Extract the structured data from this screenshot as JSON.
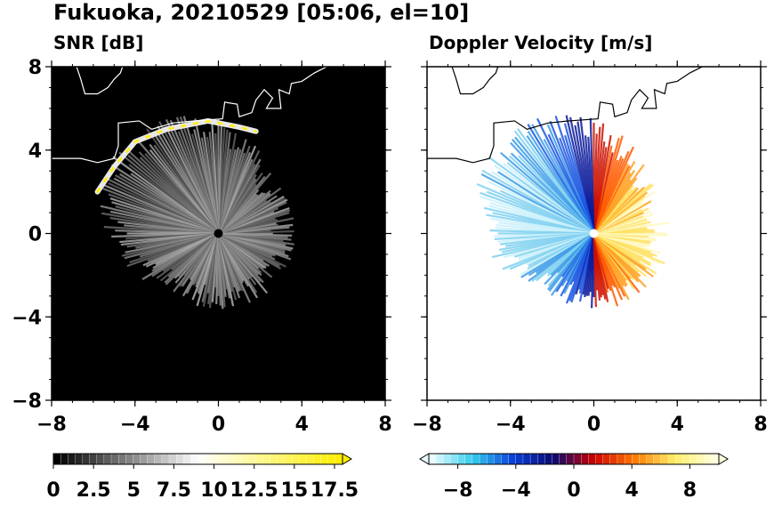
{
  "figure": {
    "title": "Fukuoka, 20210529 [05:06, el=10]"
  },
  "chart_data": [
    {
      "type": "heatmap",
      "title": "SNR [dB]",
      "xlim": [
        -8,
        8
      ],
      "ylim": [
        -8,
        8
      ],
      "xticks": [
        "−8",
        "−4",
        "0",
        "4",
        "8"
      ],
      "yticks": [
        "8",
        "4",
        "0",
        "−4",
        "−8"
      ],
      "background": "#000000",
      "colorbar": {
        "range": [
          0,
          18
        ],
        "tick_labels": [
          "0",
          "2.5",
          "5",
          "7.5",
          "10",
          "12.5",
          "15",
          "17.5"
        ],
        "colors": [
          "#000000",
          "#ffffff",
          "#ffee00"
        ],
        "extend": "max"
      }
    },
    {
      "type": "heatmap",
      "title": "Doppler Velocity [m/s]",
      "xlim": [
        -8,
        8
      ],
      "ylim": [
        -8,
        8
      ],
      "xticks": [
        "−8",
        "−4",
        "0",
        "4",
        "8"
      ],
      "yticks": [
        "8",
        "4",
        "0",
        "−4",
        "−8"
      ],
      "background": "#ffffff",
      "colorbar": {
        "range": [
          -10,
          10
        ],
        "tick_labels": [
          "−8",
          "−4",
          "0",
          "4",
          "8"
        ],
        "colors": [
          "#e8fbff",
          "#33ccee",
          "#0a3fd8",
          "#0a0a70",
          "#cc0000",
          "#ff7a00",
          "#ffee66",
          "#ffffe0"
        ],
        "extend": "both"
      }
    }
  ]
}
